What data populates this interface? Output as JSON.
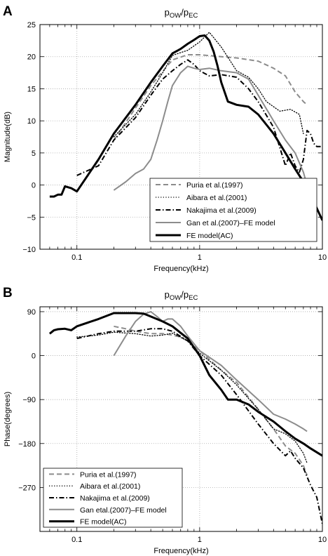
{
  "chart_data": [
    {
      "panel": "A",
      "type": "line",
      "title": "p_OW/p_EC",
      "title_main1": "p",
      "title_sub1": "OW",
      "title_sep": "/",
      "title_main2": "p",
      "title_sub2": "EC",
      "xlabel": "Frequency(kHz)",
      "ylabel": "Magnitude(dB)",
      "xscale": "log",
      "xlim": [
        0.05,
        10
      ],
      "ylim": [
        -10,
        25
      ],
      "xticks": [
        0.1,
        1,
        10
      ],
      "xtick_labels": [
        "0.1",
        "1",
        "10"
      ],
      "yticks": [
        -10,
        -5,
        0,
        5,
        10,
        15,
        20,
        25
      ],
      "ytick_labels": [
        "−10",
        "−5",
        "0",
        "5",
        "10",
        "15",
        "20",
        "25"
      ],
      "grid": true,
      "legend_position": "bottom-right",
      "series": [
        {
          "name": "Puria et al.(1997)",
          "color": "#8c8c8c",
          "dash": "dashed",
          "x": [
            0.2,
            0.3,
            0.4,
            0.6,
            0.8,
            1.0,
            1.5,
            2.0,
            3.0,
            4.0,
            5.0,
            6.0,
            7.0,
            7.5
          ],
          "y": [
            7,
            12,
            15.5,
            19.5,
            20.3,
            20.3,
            20,
            19.8,
            19.3,
            18.2,
            17,
            14.5,
            13,
            12.5
          ]
        },
        {
          "name": "Aibara et al.(2001)",
          "color": "#000000",
          "dash": "dotted",
          "x": [
            0.2,
            0.3,
            0.4,
            0.5,
            0.6,
            0.8,
            1.0,
            1.2,
            1.5,
            2.0,
            2.5,
            3.0,
            3.5,
            4.5,
            5.5,
            6.5,
            7.0
          ],
          "y": [
            7.5,
            11,
            14.5,
            17.5,
            20.2,
            21,
            22.3,
            23.8,
            21.5,
            17.8,
            16.8,
            15,
            13,
            11.5,
            11.8,
            11,
            8
          ]
        },
        {
          "name": "Nakajima et al.(2009)",
          "color": "#000000",
          "dash": "dashdot",
          "x": [
            0.1,
            0.15,
            0.2,
            0.3,
            0.4,
            0.5,
            0.6,
            0.7,
            0.8,
            0.9,
            1.0,
            1.2,
            1.5,
            2.0,
            2.5,
            3.0,
            4.0,
            5.0,
            5.5,
            6.0,
            6.5,
            7.0,
            7.5,
            8.0,
            8.5,
            9.0,
            10.0
          ],
          "y": [
            1.5,
            3,
            7,
            10.5,
            14,
            16.5,
            17.8,
            18.8,
            19.5,
            18.8,
            17.8,
            17,
            17.2,
            16.8,
            15,
            13,
            9,
            3,
            5,
            3,
            2,
            4,
            8.5,
            8,
            6.5,
            6,
            6
          ]
        },
        {
          "name": "Gan et al.(2007)–FE model",
          "color": "#8c8c8c",
          "dash": "solid",
          "x": [
            0.2,
            0.25,
            0.3,
            0.35,
            0.4,
            0.45,
            0.5,
            0.55,
            0.6,
            0.7,
            0.8,
            0.9,
            1.0,
            1.2,
            1.5,
            2.0,
            2.5,
            3.0,
            4.0,
            5.0,
            6.0,
            7.0,
            7.5
          ],
          "y": [
            -0.8,
            0.5,
            1.8,
            2.5,
            4,
            7,
            10,
            13,
            15.5,
            17.5,
            18.5,
            18.2,
            18,
            18.2,
            17.8,
            17.5,
            16.5,
            14,
            10,
            7,
            5,
            2,
            0
          ]
        },
        {
          "name": "FE model(AC)",
          "color": "#000000",
          "dash": "solid",
          "bold": true,
          "x": [
            0.06,
            0.065,
            0.07,
            0.075,
            0.08,
            0.09,
            0.1,
            0.15,
            0.2,
            0.3,
            0.4,
            0.5,
            0.6,
            0.7,
            0.8,
            0.9,
            1.0,
            1.1,
            1.2,
            1.3,
            1.4,
            1.5,
            1.7,
            2.0,
            2.5,
            3.0,
            4.0,
            5.0,
            6.0,
            7.0,
            8.0,
            10.0
          ],
          "y": [
            -1.8,
            -1.8,
            -1.5,
            -1.5,
            -0.2,
            -0.5,
            -1,
            4,
            8,
            12.5,
            16,
            18.5,
            20.5,
            21.2,
            22,
            22.6,
            23.2,
            23.3,
            22.5,
            20.8,
            18.5,
            16,
            13,
            12.5,
            12.2,
            11,
            8,
            5,
            2.5,
            0.5,
            -1.5,
            -5.5
          ]
        }
      ]
    },
    {
      "panel": "B",
      "type": "line",
      "title": "p_OW/p_EC",
      "title_main1": "p",
      "title_sub1": "OW",
      "title_sep": "/",
      "title_main2": "p",
      "title_sub2": "EC",
      "xlabel": "Frequency(kHz)",
      "ylabel": "Phase(degrees)",
      "xscale": "log",
      "xlim": [
        0.05,
        10
      ],
      "ylim": [
        -360,
        100
      ],
      "xticks": [
        0.1,
        1,
        10
      ],
      "xtick_labels": [
        "0.1",
        "1",
        "10"
      ],
      "yticks": [
        90,
        0,
        -90,
        -180,
        -270
      ],
      "ytick_labels": [
        "90",
        "0",
        "−90",
        "−180",
        "−270"
      ],
      "grid": true,
      "legend_position": "bottom-left",
      "series": [
        {
          "name": "Puria et al.(1997)",
          "color": "#8c8c8c",
          "dash": "dashed",
          "x": [
            0.2,
            0.25,
            0.3,
            0.4,
            0.5,
            0.6,
            0.7,
            0.8,
            1.0,
            1.5,
            2.0,
            3.0,
            4.0,
            5.0,
            6.0,
            7.0,
            7.5
          ],
          "y": [
            60,
            55,
            50,
            45,
            45,
            42,
            38,
            30,
            10,
            -30,
            -55,
            -110,
            -150,
            -185,
            -200,
            -225,
            -245
          ]
        },
        {
          "name": "Aibara et al.(2001)",
          "color": "#000000",
          "dash": "dotted",
          "x": [
            0.1,
            0.15,
            0.2,
            0.3,
            0.4,
            0.5,
            0.6,
            0.8,
            1.0,
            1.5,
            2.0,
            3.0,
            4.0,
            5.0,
            6.0,
            7.0,
            7.5
          ],
          "y": [
            38,
            42,
            48,
            45,
            40,
            42,
            46,
            30,
            5,
            -30,
            -60,
            -110,
            -150,
            -160,
            -175,
            -200,
            -220
          ]
        },
        {
          "name": "Nakajima et al.(2009)",
          "color": "#000000",
          "dash": "dashdot",
          "x": [
            0.1,
            0.15,
            0.2,
            0.3,
            0.4,
            0.5,
            0.6,
            0.8,
            1.0,
            1.5,
            2.0,
            3.0,
            4.0,
            5.0,
            5.5,
            6.0,
            7.0,
            8.0,
            9.0,
            10.0
          ],
          "y": [
            35,
            45,
            50,
            50,
            55,
            55,
            50,
            30,
            0,
            -40,
            -80,
            -140,
            -180,
            -205,
            -195,
            -210,
            -230,
            -265,
            -290,
            -345
          ]
        },
        {
          "name": "Gan etal.(2007)–FE model",
          "color": "#8c8c8c",
          "dash": "solid",
          "x": [
            0.2,
            0.25,
            0.3,
            0.35,
            0.4,
            0.45,
            0.5,
            0.55,
            0.6,
            0.7,
            0.8,
            1.0,
            1.5,
            2.0,
            3.0,
            4.0,
            5.0,
            6.0,
            7.0,
            7.5
          ],
          "y": [
            0,
            40,
            70,
            85,
            90,
            80,
            70,
            75,
            75,
            60,
            40,
            10,
            -20,
            -50,
            -90,
            -120,
            -130,
            -140,
            -150,
            -155
          ]
        },
        {
          "name": "FE model(AC)",
          "color": "#000000",
          "dash": "solid",
          "bold": true,
          "x": [
            0.06,
            0.065,
            0.07,
            0.08,
            0.09,
            0.1,
            0.15,
            0.2,
            0.3,
            0.35,
            0.4,
            0.5,
            0.6,
            0.8,
            1.0,
            1.2,
            1.5,
            1.7,
            2.0,
            2.5,
            3.0,
            4.0,
            5.0,
            6.0,
            7.0,
            8.0,
            10.0
          ],
          "y": [
            45,
            52,
            54,
            55,
            52,
            60,
            75,
            87,
            87,
            86,
            80,
            70,
            60,
            35,
            0,
            -40,
            -70,
            -90,
            -90,
            -100,
            -115,
            -135,
            -155,
            -170,
            -180,
            -190,
            -205
          ]
        }
      ]
    }
  ]
}
